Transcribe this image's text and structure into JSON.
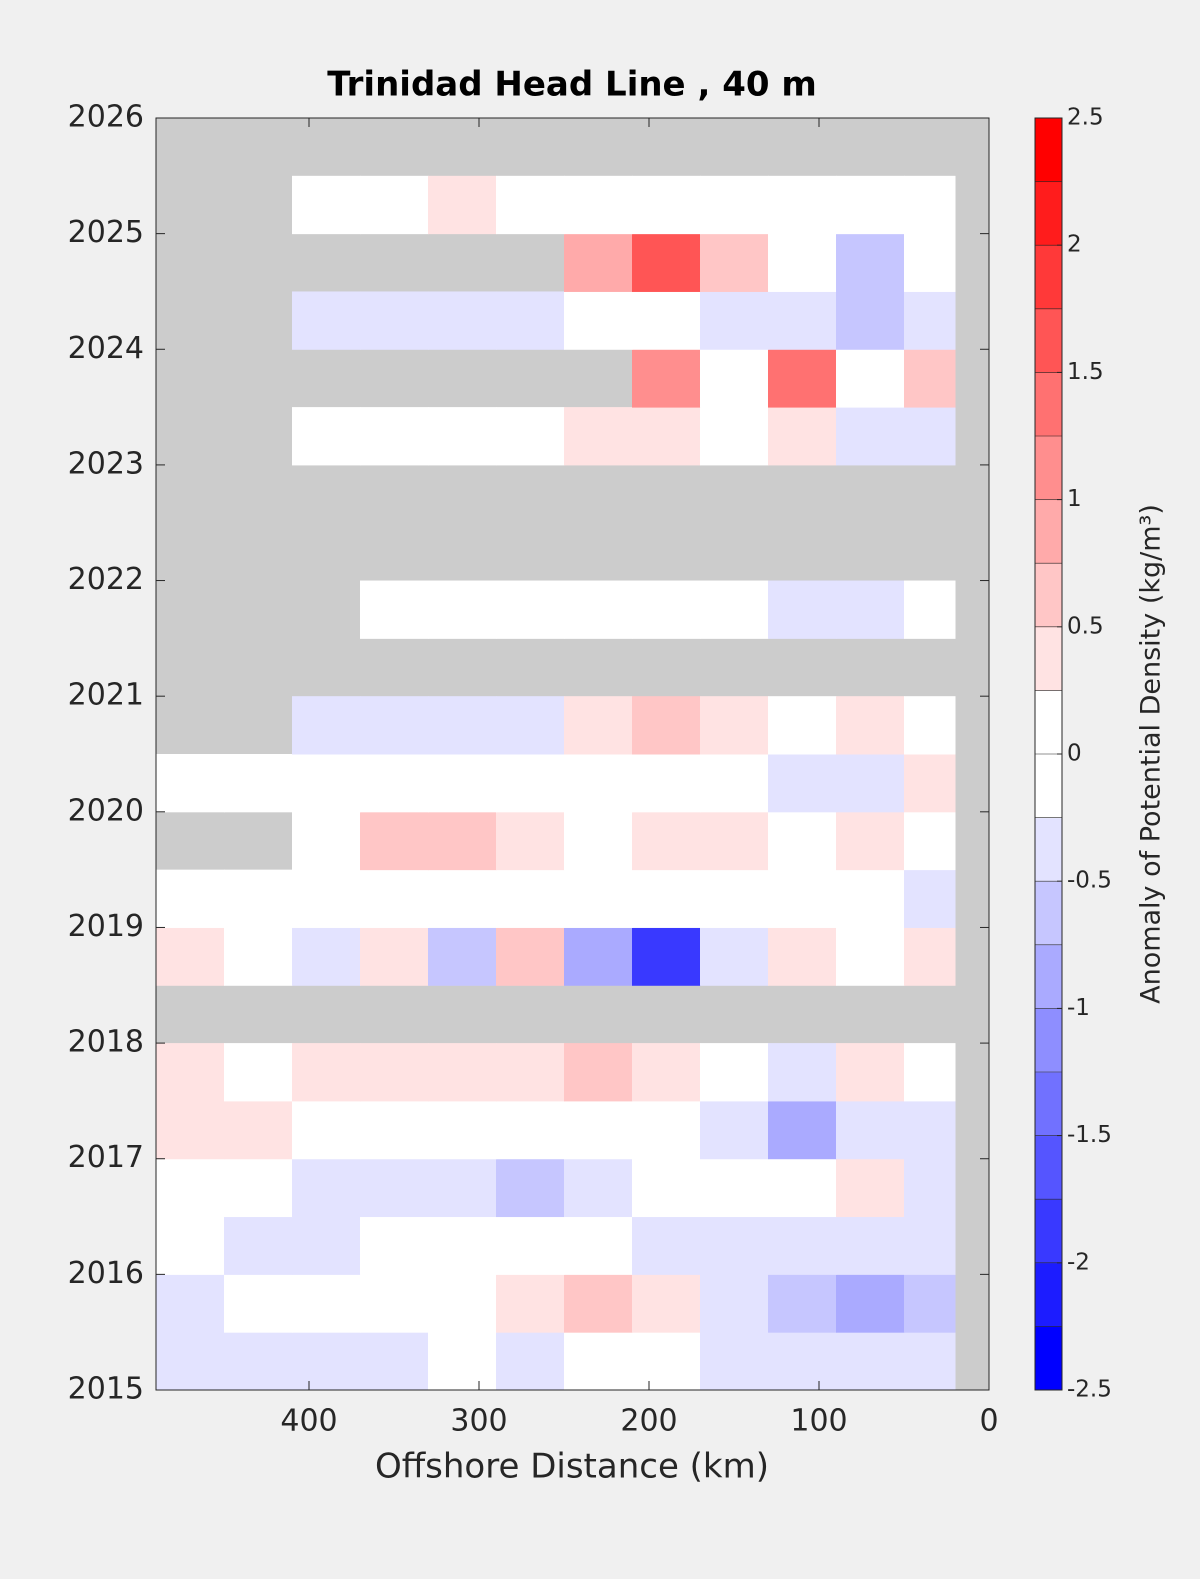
{
  "chart_data": {
    "type": "heatmap",
    "title": "Trinidad Head Line , 40 m",
    "xlabel": "Offshore Distance (km)",
    "colorbar_label": "Anomaly of Potential Density (kg/m³)",
    "xlim": [
      490,
      0
    ],
    "xticks": [
      400,
      300,
      200,
      100,
      0
    ],
    "ylim": [
      2015,
      2026
    ],
    "yticks": [
      2015,
      2016,
      2017,
      2018,
      2019,
      2020,
      2021,
      2022,
      2023,
      2024,
      2025,
      2026
    ],
    "clim": [
      -2.5,
      2.5
    ],
    "cticks": [
      -2.5,
      -2,
      -1.5,
      -1,
      -0.5,
      0,
      0.5,
      1,
      1.5,
      2,
      2.5
    ],
    "levels": [
      -2.5,
      -2.25,
      -2,
      -1.75,
      -1.5,
      -1.25,
      -1,
      -0.75,
      -0.5,
      -0.25,
      0,
      0.25,
      0.5,
      0.75,
      1,
      1.25,
      1.5,
      1.75,
      2,
      2.25,
      2.5
    ],
    "colormap": [
      "#0000ff",
      "#ffffff",
      "#ff0000"
    ],
    "missing_color": "#cccccc",
    "xbins": [
      490,
      450,
      410,
      370,
      330,
      290,
      250,
      210,
      170,
      130,
      90,
      50,
      20
    ],
    "ybins": [
      2015,
      2015.5,
      2016,
      2016.5,
      2017,
      2017.5,
      2018,
      2018.5,
      2019,
      2019.5,
      2020,
      2020.5,
      2021,
      2021.5,
      2022,
      2022.5,
      2023,
      2023.5,
      2024,
      2024.5,
      2025,
      2025.5
    ],
    "z": [
      [
        -0.3,
        -0.3,
        -0.3,
        -0.3,
        -0.2,
        -0.3,
        -0.1,
        0,
        -0.3,
        -0.5,
        -0.4,
        -0.5
      ],
      [
        -0.4,
        0.1,
        -0.1,
        0.1,
        0.2,
        0.3,
        0.6,
        0.3,
        -0.5,
        -0.6,
        -0.9,
        -0.6
      ],
      [
        -0.2,
        -0.4,
        -0.3,
        -0.2,
        -0.1,
        0,
        -0.1,
        -0.3,
        -0.4,
        -0.4,
        -0.3,
        -0.5
      ],
      [
        0,
        0.1,
        -0.3,
        -0.4,
        -0.5,
        -0.6,
        -0.4,
        -0.2,
        0.1,
        0,
        0.3,
        -0.3
      ],
      [
        0.3,
        0.3,
        0.2,
        0.1,
        0.1,
        0,
        0,
        -0.1,
        -0.3,
        -1.0,
        -0.4,
        -0.4
      ],
      [
        0.3,
        0.2,
        0.3,
        0.4,
        0.3,
        0.4,
        0.6,
        0.3,
        0.1,
        -0.3,
        0.4,
        0.2
      ],
      [
        null,
        null,
        null,
        null,
        null,
        null,
        null,
        null,
        null,
        null,
        null,
        null
      ],
      [
        0.3,
        -0.1,
        -0.3,
        0.4,
        -0.6,
        0.5,
        -0.9,
        -1.8,
        -0.5,
        0.4,
        -0.1,
        0.3
      ],
      [
        0,
        0,
        0,
        0,
        0,
        0,
        0.1,
        0,
        0,
        0,
        -0.2,
        -0.3
      ],
      [
        null,
        null,
        0,
        0.5,
        0.6,
        0.4,
        0.2,
        0.3,
        0.4,
        0.1,
        0.3,
        0.1
      ],
      [
        -0.2,
        0,
        0,
        0.1,
        0.1,
        0,
        0,
        -0.2,
        -0.1,
        -0.3,
        -0.3,
        0.3
      ],
      [
        null,
        null,
        -0.3,
        -0.4,
        -0.5,
        -0.3,
        0.3,
        0.7,
        0.4,
        0.2,
        0.3,
        0
      ],
      [
        null,
        null,
        null,
        null,
        null,
        null,
        null,
        null,
        null,
        null,
        null,
        null
      ],
      [
        null,
        null,
        null,
        0,
        0,
        -0.1,
        0,
        0,
        -0.2,
        -0.3,
        -0.3,
        -0.2
      ],
      [
        null,
        null,
        null,
        null,
        null,
        null,
        null,
        null,
        null,
        null,
        null,
        null
      ],
      [
        null,
        null,
        null,
        null,
        null,
        null,
        null,
        null,
        null,
        null,
        null,
        null
      ],
      [
        null,
        null,
        0,
        0,
        0,
        -0.1,
        0.3,
        0.3,
        0.1,
        0.4,
        -0.3,
        -0.4
      ],
      [
        null,
        null,
        null,
        null,
        null,
        null,
        null,
        1.0,
        0.1,
        1.4,
        0.2,
        0.5
      ],
      [
        null,
        null,
        -0.3,
        -0.3,
        -0.3,
        -0.3,
        -0.1,
        0,
        -0.3,
        -0.5,
        -0.6,
        -0.5
      ],
      [
        null,
        null,
        null,
        null,
        null,
        null,
        0.9,
        1.6,
        0.6,
        0.2,
        -0.7,
        -0.2
      ],
      [
        null,
        null,
        0,
        0,
        0.4,
        0,
        0,
        0,
        0,
        0,
        0,
        0.2
      ]
    ]
  }
}
